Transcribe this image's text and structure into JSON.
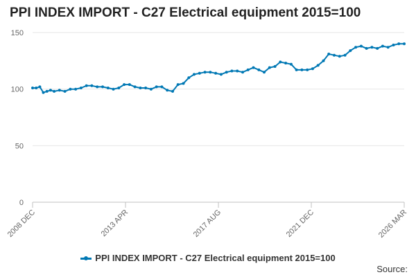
{
  "chart_data": {
    "type": "line",
    "title": "PPI INDEX IMPORT - C27 Electrical equipment 2015=100",
    "xlabel": "",
    "ylabel": "",
    "x_tick_labels": [
      "2008 DEC",
      "2013 APR",
      "2017 AUG",
      "2021 DEC",
      "2026 MAR"
    ],
    "ylim": [
      0,
      150
    ],
    "y_ticks": [
      0,
      50,
      100,
      150
    ],
    "grid": true,
    "legend_position": "bottom",
    "series_color": "#0078b4",
    "series": [
      {
        "name": "PPI INDEX IMPORT - C27 Electrical equipment 2015=100",
        "x": [
          "2008-12",
          "2009-02",
          "2009-04",
          "2009-06",
          "2009-08",
          "2009-10",
          "2009-12",
          "2010-03",
          "2010-06",
          "2010-09",
          "2010-12",
          "2011-03",
          "2011-06",
          "2011-09",
          "2011-12",
          "2012-03",
          "2012-06",
          "2012-09",
          "2012-12",
          "2013-03",
          "2013-06",
          "2013-09",
          "2013-12",
          "2014-03",
          "2014-06",
          "2014-09",
          "2014-12",
          "2015-03",
          "2015-06",
          "2015-09",
          "2015-12",
          "2016-03",
          "2016-06",
          "2016-09",
          "2016-12",
          "2017-03",
          "2017-06",
          "2017-09",
          "2017-12",
          "2018-03",
          "2018-06",
          "2018-09",
          "2018-12",
          "2019-03",
          "2019-06",
          "2019-09",
          "2019-12",
          "2020-03",
          "2020-06",
          "2020-09",
          "2020-12",
          "2021-03",
          "2021-06",
          "2021-09",
          "2021-12",
          "2022-03",
          "2022-06",
          "2022-09",
          "2022-12",
          "2023-03",
          "2023-06",
          "2023-09",
          "2023-12",
          "2024-03",
          "2024-06",
          "2024-09",
          "2024-12",
          "2025-03",
          "2025-06",
          "2025-09",
          "2025-12",
          "2026-03"
        ],
        "y": [
          101,
          101,
          102,
          97,
          98,
          99,
          98,
          99,
          98,
          100,
          100,
          101,
          103,
          103,
          102,
          102,
          101,
          100,
          101,
          104,
          104,
          102,
          101,
          101,
          100,
          102,
          102,
          99,
          98,
          104,
          105,
          110,
          113,
          114,
          115,
          115,
          114,
          113,
          115,
          116,
          116,
          115,
          117,
          119,
          117,
          115,
          119,
          120,
          124,
          123,
          122,
          117,
          117,
          117,
          118,
          121,
          125,
          131,
          130,
          129,
          130,
          134,
          137,
          138,
          136,
          137,
          136,
          138,
          137,
          139,
          140,
          140
        ]
      }
    ]
  },
  "source_label": "Source:"
}
